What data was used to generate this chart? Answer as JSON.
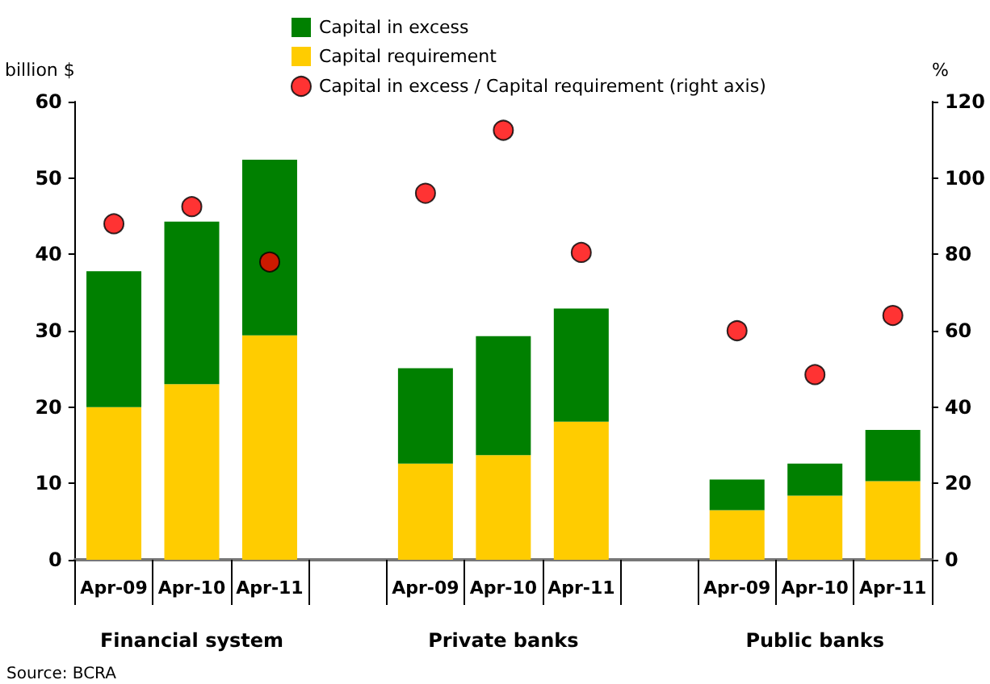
{
  "chart_data": {
    "type": "bar",
    "stacked": true,
    "categories": [
      "Apr-09",
      "Apr-10",
      "Apr-11",
      null,
      "Apr-09",
      "Apr-10",
      "Apr-11",
      null,
      "Apr-09",
      "Apr-10",
      "Apr-11"
    ],
    "series": [
      {
        "name": "Capital requirement",
        "color": "#ffcc00",
        "values": [
          20,
          23,
          29.4,
          null,
          12.6,
          13.7,
          18.1,
          null,
          6.5,
          8.4,
          10.3
        ]
      },
      {
        "name": "Capital in excess",
        "color": "#008000",
        "values": [
          17.8,
          21.3,
          23.0,
          null,
          12.5,
          15.6,
          14.8,
          null,
          4.0,
          4.2,
          6.7
        ]
      },
      {
        "name": "Capital in excess / Capital requirement (right axis)",
        "type": "scatter",
        "axis": "y2",
        "marker": "circle",
        "color": "#ff0000",
        "values": [
          88,
          92.5,
          78,
          null,
          96,
          112.5,
          80.5,
          null,
          60,
          48.5,
          64
        ]
      }
    ],
    "ylabel": "billion $",
    "y2label": "%",
    "ylim": [
      0,
      60
    ],
    "yticks": [
      0,
      10,
      20,
      30,
      40,
      50,
      60
    ],
    "y2lim": [
      0,
      120
    ],
    "y2ticks": [
      0,
      20,
      40,
      60,
      80,
      100,
      120
    ],
    "grid": false,
    "legend": "top",
    "annotations": [
      "Financial system",
      "Private banks",
      "Public banks",
      "Source: BCRA"
    ]
  }
}
